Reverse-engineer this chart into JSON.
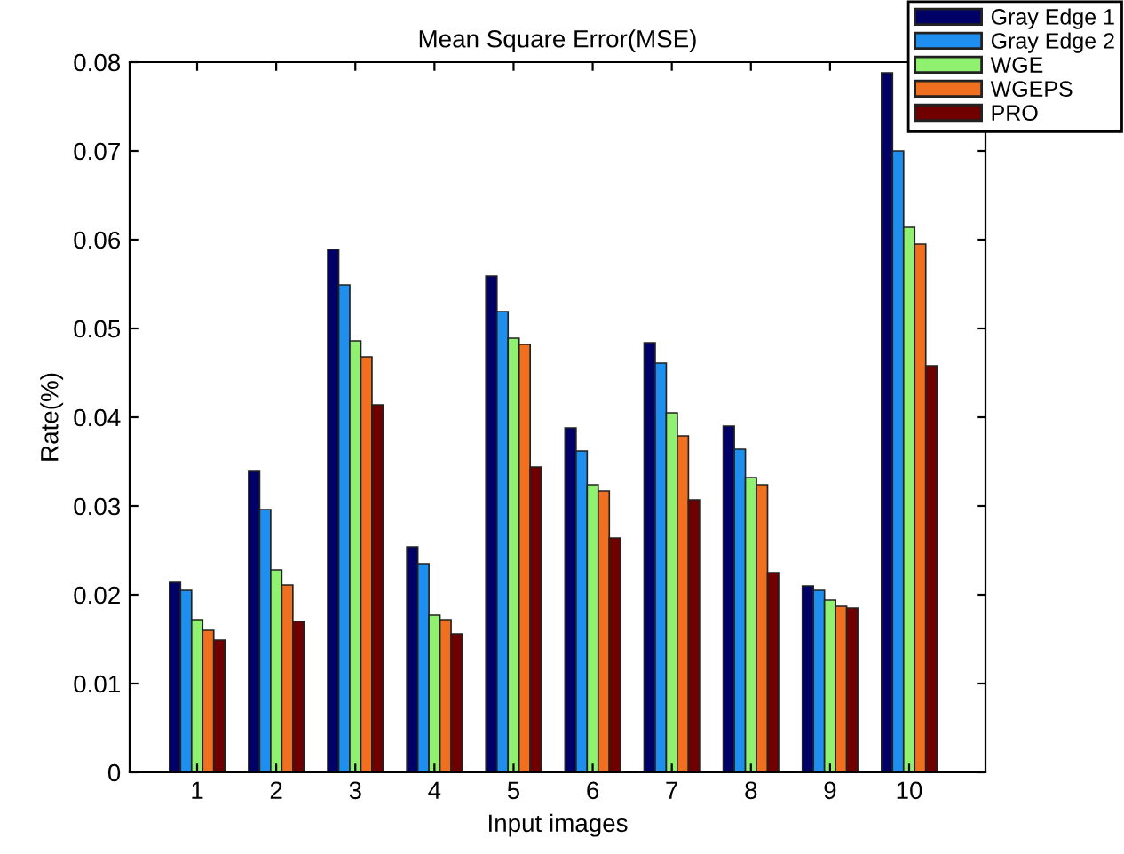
{
  "chart_data": {
    "type": "bar",
    "title": "Mean Square Error(MSE)",
    "xlabel": "Input images",
    "ylabel": "Rate(%)",
    "categories": [
      "1",
      "2",
      "3",
      "4",
      "5",
      "6",
      "7",
      "8",
      "9",
      "10"
    ],
    "series": [
      {
        "name": "Gray Edge 1",
        "color": "#000066",
        "values": [
          0.0214,
          0.0339,
          0.0589,
          0.0254,
          0.0559,
          0.0388,
          0.0484,
          0.039,
          0.021,
          0.0788
        ]
      },
      {
        "name": "Gray Edge 2",
        "color": "#1f8fef",
        "values": [
          0.0205,
          0.0296,
          0.0549,
          0.0235,
          0.0519,
          0.0362,
          0.0461,
          0.0364,
          0.0205,
          0.07
        ]
      },
      {
        "name": "WGE",
        "color": "#90f070",
        "values": [
          0.0172,
          0.0228,
          0.0486,
          0.0177,
          0.0489,
          0.0324,
          0.0405,
          0.0332,
          0.0194,
          0.0614
        ]
      },
      {
        "name": "WGEPS",
        "color": "#f07020",
        "values": [
          0.016,
          0.0211,
          0.0468,
          0.0172,
          0.0482,
          0.0317,
          0.0379,
          0.0324,
          0.0187,
          0.0595
        ]
      },
      {
        "name": "PRO",
        "color": "#700000",
        "values": [
          0.0149,
          0.017,
          0.0414,
          0.0156,
          0.0344,
          0.0264,
          0.0307,
          0.0225,
          0.0185,
          0.0458
        ]
      }
    ],
    "ylim": [
      0,
      0.08
    ],
    "yticks": [
      0,
      0.01,
      0.02,
      0.03,
      0.04,
      0.05,
      0.06,
      0.07,
      0.08
    ],
    "legend": "top right",
    "grid": false
  }
}
